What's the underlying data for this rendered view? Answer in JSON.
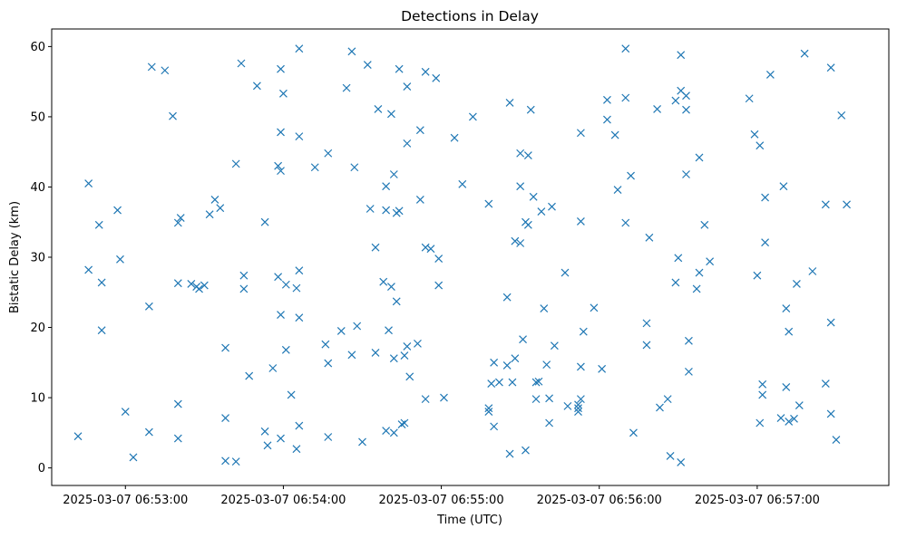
{
  "chart_data": {
    "type": "scatter",
    "title": "Detections in Delay",
    "xlabel": "Time (UTC)",
    "ylabel": "Bistatic Delay (km)",
    "x_axis": {
      "kind": "datetime",
      "range": [
        "2025-03-07 06:52:32",
        "2025-03-07 06:57:50"
      ],
      "ticks": [
        "2025-03-07 06:53:00",
        "2025-03-07 06:54:00",
        "2025-03-07 06:55:00",
        "2025-03-07 06:56:00",
        "2025-03-07 06:57:00"
      ]
    },
    "y_axis": {
      "range": [
        -2.5,
        62.5
      ],
      "ticks": [
        0,
        10,
        20,
        30,
        40,
        50,
        60
      ]
    },
    "grid": false,
    "legend": "none",
    "marker": "x",
    "color": "#1f77b4",
    "series": [
      {
        "points": [
          {
            "x": "2025-03-07 06:52:42",
            "y": 4.5
          },
          {
            "x": "2025-03-07 06:52:46",
            "y": 40.5
          },
          {
            "x": "2025-03-07 06:52:46",
            "y": 28.2
          },
          {
            "x": "2025-03-07 06:52:50",
            "y": 34.6
          },
          {
            "x": "2025-03-07 06:52:51",
            "y": 19.6
          },
          {
            "x": "2025-03-07 06:52:51",
            "y": 26.4
          },
          {
            "x": "2025-03-07 06:52:57",
            "y": 36.7
          },
          {
            "x": "2025-03-07 06:52:58",
            "y": 29.7
          },
          {
            "x": "2025-03-07 06:53:00",
            "y": 8.0
          },
          {
            "x": "2025-03-07 06:53:03",
            "y": 1.5
          },
          {
            "x": "2025-03-07 06:53:09",
            "y": 23.0
          },
          {
            "x": "2025-03-07 06:53:09",
            "y": 5.1
          },
          {
            "x": "2025-03-07 06:53:10",
            "y": 57.1
          },
          {
            "x": "2025-03-07 06:53:15",
            "y": 56.6
          },
          {
            "x": "2025-03-07 06:53:18",
            "y": 50.1
          },
          {
            "x": "2025-03-07 06:53:20",
            "y": 34.9
          },
          {
            "x": "2025-03-07 06:53:20",
            "y": 26.3
          },
          {
            "x": "2025-03-07 06:53:20",
            "y": 9.1
          },
          {
            "x": "2025-03-07 06:53:20",
            "y": 4.2
          },
          {
            "x": "2025-03-07 06:53:21",
            "y": 35.6
          },
          {
            "x": "2025-03-07 06:53:25",
            "y": 26.2
          },
          {
            "x": "2025-03-07 06:53:27",
            "y": 25.8
          },
          {
            "x": "2025-03-07 06:53:28",
            "y": 25.5
          },
          {
            "x": "2025-03-07 06:53:30",
            "y": 26.0
          },
          {
            "x": "2025-03-07 06:53:32",
            "y": 36.1
          },
          {
            "x": "2025-03-07 06:53:34",
            "y": 38.2
          },
          {
            "x": "2025-03-07 06:53:36",
            "y": 37.0
          },
          {
            "x": "2025-03-07 06:53:38",
            "y": 17.1
          },
          {
            "x": "2025-03-07 06:53:38",
            "y": 7.1
          },
          {
            "x": "2025-03-07 06:53:38",
            "y": 1.0
          },
          {
            "x": "2025-03-07 06:53:42",
            "y": 43.3
          },
          {
            "x": "2025-03-07 06:53:42",
            "y": 0.9
          },
          {
            "x": "2025-03-07 06:53:44",
            "y": 57.6
          },
          {
            "x": "2025-03-07 06:53:45",
            "y": 27.4
          },
          {
            "x": "2025-03-07 06:53:45",
            "y": 25.5
          },
          {
            "x": "2025-03-07 06:53:47",
            "y": 13.1
          },
          {
            "x": "2025-03-07 06:53:50",
            "y": 54.4
          },
          {
            "x": "2025-03-07 06:53:53",
            "y": 35.0
          },
          {
            "x": "2025-03-07 06:53:53",
            "y": 5.2
          },
          {
            "x": "2025-03-07 06:53:54",
            "y": 3.2
          },
          {
            "x": "2025-03-07 06:53:56",
            "y": 14.2
          },
          {
            "x": "2025-03-07 06:53:58",
            "y": 43.0
          },
          {
            "x": "2025-03-07 06:53:58",
            "y": 27.2
          },
          {
            "x": "2025-03-07 06:53:59",
            "y": 56.8
          },
          {
            "x": "2025-03-07 06:53:59",
            "y": 47.8
          },
          {
            "x": "2025-03-07 06:53:59",
            "y": 42.3
          },
          {
            "x": "2025-03-07 06:53:59",
            "y": 21.8
          },
          {
            "x": "2025-03-07 06:53:59",
            "y": 4.2
          },
          {
            "x": "2025-03-07 06:54:00",
            "y": 53.3
          },
          {
            "x": "2025-03-07 06:54:01",
            "y": 26.1
          },
          {
            "x": "2025-03-07 06:54:01",
            "y": 16.8
          },
          {
            "x": "2025-03-07 06:54:03",
            "y": 10.4
          },
          {
            "x": "2025-03-07 06:54:05",
            "y": 25.6
          },
          {
            "x": "2025-03-07 06:54:05",
            "y": 2.7
          },
          {
            "x": "2025-03-07 06:54:06",
            "y": 59.7
          },
          {
            "x": "2025-03-07 06:54:06",
            "y": 47.2
          },
          {
            "x": "2025-03-07 06:54:06",
            "y": 28.1
          },
          {
            "x": "2025-03-07 06:54:06",
            "y": 21.4
          },
          {
            "x": "2025-03-07 06:54:06",
            "y": 6.0
          },
          {
            "x": "2025-03-07 06:54:12",
            "y": 42.8
          },
          {
            "x": "2025-03-07 06:54:16",
            "y": 17.6
          },
          {
            "x": "2025-03-07 06:54:17",
            "y": 14.9
          },
          {
            "x": "2025-03-07 06:54:17",
            "y": 44.8
          },
          {
            "x": "2025-03-07 06:54:17",
            "y": 4.4
          },
          {
            "x": "2025-03-07 06:54:22",
            "y": 19.5
          },
          {
            "x": "2025-03-07 06:54:24",
            "y": 54.1
          },
          {
            "x": "2025-03-07 06:54:26",
            "y": 59.3
          },
          {
            "x": "2025-03-07 06:54:26",
            "y": 16.1
          },
          {
            "x": "2025-03-07 06:54:27",
            "y": 42.8
          },
          {
            "x": "2025-03-07 06:54:28",
            "y": 20.2
          },
          {
            "x": "2025-03-07 06:54:30",
            "y": 3.7
          },
          {
            "x": "2025-03-07 06:54:32",
            "y": 57.4
          },
          {
            "x": "2025-03-07 06:54:33",
            "y": 36.9
          },
          {
            "x": "2025-03-07 06:54:35",
            "y": 31.4
          },
          {
            "x": "2025-03-07 06:54:35",
            "y": 16.4
          },
          {
            "x": "2025-03-07 06:54:36",
            "y": 51.1
          },
          {
            "x": "2025-03-07 06:54:38",
            "y": 26.5
          },
          {
            "x": "2025-03-07 06:54:39",
            "y": 40.1
          },
          {
            "x": "2025-03-07 06:54:39",
            "y": 36.7
          },
          {
            "x": "2025-03-07 06:54:39",
            "y": 5.3
          },
          {
            "x": "2025-03-07 06:54:40",
            "y": 19.6
          },
          {
            "x": "2025-03-07 06:54:41",
            "y": 50.4
          },
          {
            "x": "2025-03-07 06:54:41",
            "y": 25.8
          },
          {
            "x": "2025-03-07 06:54:42",
            "y": 41.8
          },
          {
            "x": "2025-03-07 06:54:42",
            "y": 15.6
          },
          {
            "x": "2025-03-07 06:54:42",
            "y": 5.0
          },
          {
            "x": "2025-03-07 06:54:43",
            "y": 36.3
          },
          {
            "x": "2025-03-07 06:54:43",
            "y": 23.7
          },
          {
            "x": "2025-03-07 06:54:44",
            "y": 56.8
          },
          {
            "x": "2025-03-07 06:54:44",
            "y": 36.6
          },
          {
            "x": "2025-03-07 06:54:45",
            "y": 6.2
          },
          {
            "x": "2025-03-07 06:54:46",
            "y": 16.0
          },
          {
            "x": "2025-03-07 06:54:46",
            "y": 6.4
          },
          {
            "x": "2025-03-07 06:54:47",
            "y": 54.3
          },
          {
            "x": "2025-03-07 06:54:47",
            "y": 46.2
          },
          {
            "x": "2025-03-07 06:54:47",
            "y": 17.3
          },
          {
            "x": "2025-03-07 06:54:48",
            "y": 13.0
          },
          {
            "x": "2025-03-07 06:54:51",
            "y": 17.7
          },
          {
            "x": "2025-03-07 06:54:52",
            "y": 48.1
          },
          {
            "x": "2025-03-07 06:54:52",
            "y": 38.2
          },
          {
            "x": "2025-03-07 06:54:54",
            "y": 56.4
          },
          {
            "x": "2025-03-07 06:54:54",
            "y": 31.4
          },
          {
            "x": "2025-03-07 06:54:54",
            "y": 9.8
          },
          {
            "x": "2025-03-07 06:54:56",
            "y": 31.2
          },
          {
            "x": "2025-03-07 06:54:58",
            "y": 55.5
          },
          {
            "x": "2025-03-07 06:54:59",
            "y": 29.8
          },
          {
            "x": "2025-03-07 06:54:59",
            "y": 26.0
          },
          {
            "x": "2025-03-07 06:55:01",
            "y": 10.0
          },
          {
            "x": "2025-03-07 06:55:05",
            "y": 47.0
          },
          {
            "x": "2025-03-07 06:55:08",
            "y": 40.4
          },
          {
            "x": "2025-03-07 06:55:12",
            "y": 50.0
          },
          {
            "x": "2025-03-07 06:55:18",
            "y": 37.6
          },
          {
            "x": "2025-03-07 06:55:18",
            "y": 8.5
          },
          {
            "x": "2025-03-07 06:55:18",
            "y": 8.0
          },
          {
            "x": "2025-03-07 06:55:19",
            "y": 12.0
          },
          {
            "x": "2025-03-07 06:55:20",
            "y": 15.0
          },
          {
            "x": "2025-03-07 06:55:20",
            "y": 5.9
          },
          {
            "x": "2025-03-07 06:55:22",
            "y": 12.2
          },
          {
            "x": "2025-03-07 06:55:25",
            "y": 14.6
          },
          {
            "x": "2025-03-07 06:55:25",
            "y": 24.3
          },
          {
            "x": "2025-03-07 06:55:26",
            "y": 52.0
          },
          {
            "x": "2025-03-07 06:55:27",
            "y": 12.2
          },
          {
            "x": "2025-03-07 06:55:26",
            "y": 2.0
          },
          {
            "x": "2025-03-07 06:55:28",
            "y": 32.3
          },
          {
            "x": "2025-03-07 06:55:28",
            "y": 15.6
          },
          {
            "x": "2025-03-07 06:55:30",
            "y": 44.8
          },
          {
            "x": "2025-03-07 06:55:30",
            "y": 40.1
          },
          {
            "x": "2025-03-07 06:55:30",
            "y": 32.0
          },
          {
            "x": "2025-03-07 06:55:31",
            "y": 18.3
          },
          {
            "x": "2025-03-07 06:55:32",
            "y": 35.0
          },
          {
            "x": "2025-03-07 06:55:32",
            "y": 2.5
          },
          {
            "x": "2025-03-07 06:55:33",
            "y": 44.5
          },
          {
            "x": "2025-03-07 06:55:33",
            "y": 34.6
          },
          {
            "x": "2025-03-07 06:55:34",
            "y": 51.0
          },
          {
            "x": "2025-03-07 06:55:35",
            "y": 38.6
          },
          {
            "x": "2025-03-07 06:55:36",
            "y": 12.2
          },
          {
            "x": "2025-03-07 06:55:36",
            "y": 9.8
          },
          {
            "x": "2025-03-07 06:55:37",
            "y": 12.3
          },
          {
            "x": "2025-03-07 06:55:38",
            "y": 36.5
          },
          {
            "x": "2025-03-07 06:55:39",
            "y": 22.7
          },
          {
            "x": "2025-03-07 06:55:40",
            "y": 14.7
          },
          {
            "x": "2025-03-07 06:55:41",
            "y": 9.9
          },
          {
            "x": "2025-03-07 06:55:41",
            "y": 6.4
          },
          {
            "x": "2025-03-07 06:55:42",
            "y": 37.2
          },
          {
            "x": "2025-03-07 06:55:43",
            "y": 17.4
          },
          {
            "x": "2025-03-07 06:55:47",
            "y": 27.8
          },
          {
            "x": "2025-03-07 06:55:48",
            "y": 8.8
          },
          {
            "x": "2025-03-07 06:55:52",
            "y": 9.0
          },
          {
            "x": "2025-03-07 06:55:52",
            "y": 8.5
          },
          {
            "x": "2025-03-07 06:55:52",
            "y": 8.0
          },
          {
            "x": "2025-03-07 06:55:53",
            "y": 47.7
          },
          {
            "x": "2025-03-07 06:55:53",
            "y": 35.1
          },
          {
            "x": "2025-03-07 06:55:53",
            "y": 14.4
          },
          {
            "x": "2025-03-07 06:55:53",
            "y": 9.8
          },
          {
            "x": "2025-03-07 06:55:54",
            "y": 19.4
          },
          {
            "x": "2025-03-07 06:55:58",
            "y": 22.8
          },
          {
            "x": "2025-03-07 06:56:01",
            "y": 14.1
          },
          {
            "x": "2025-03-07 06:56:03",
            "y": 49.6
          },
          {
            "x": "2025-03-07 06:56:03",
            "y": 52.4
          },
          {
            "x": "2025-03-07 06:56:06",
            "y": 47.4
          },
          {
            "x": "2025-03-07 06:56:07",
            "y": 39.6
          },
          {
            "x": "2025-03-07 06:56:10",
            "y": 59.7
          },
          {
            "x": "2025-03-07 06:56:10",
            "y": 52.7
          },
          {
            "x": "2025-03-07 06:56:10",
            "y": 34.9
          },
          {
            "x": "2025-03-07 06:56:12",
            "y": 41.6
          },
          {
            "x": "2025-03-07 06:56:13",
            "y": 5.0
          },
          {
            "x": "2025-03-07 06:56:18",
            "y": 20.6
          },
          {
            "x": "2025-03-07 06:56:18",
            "y": 17.5
          },
          {
            "x": "2025-03-07 06:56:19",
            "y": 32.8
          },
          {
            "x": "2025-03-07 06:56:22",
            "y": 51.1
          },
          {
            "x": "2025-03-07 06:56:23",
            "y": 8.6
          },
          {
            "x": "2025-03-07 06:56:26",
            "y": 9.8
          },
          {
            "x": "2025-03-07 06:56:27",
            "y": 1.7
          },
          {
            "x": "2025-03-07 06:56:29",
            "y": 52.3
          },
          {
            "x": "2025-03-07 06:56:29",
            "y": 26.4
          },
          {
            "x": "2025-03-07 06:56:30",
            "y": 29.9
          },
          {
            "x": "2025-03-07 06:56:31",
            "y": 58.8
          },
          {
            "x": "2025-03-07 06:56:31",
            "y": 53.7
          },
          {
            "x": "2025-03-07 06:56:31",
            "y": 0.8
          },
          {
            "x": "2025-03-07 06:56:33",
            "y": 53.0
          },
          {
            "x": "2025-03-07 06:56:33",
            "y": 51.0
          },
          {
            "x": "2025-03-07 06:56:33",
            "y": 41.8
          },
          {
            "x": "2025-03-07 06:56:34",
            "y": 18.1
          },
          {
            "x": "2025-03-07 06:56:34",
            "y": 13.7
          },
          {
            "x": "2025-03-07 06:56:37",
            "y": 25.5
          },
          {
            "x": "2025-03-07 06:56:38",
            "y": 44.2
          },
          {
            "x": "2025-03-07 06:56:38",
            "y": 27.8
          },
          {
            "x": "2025-03-07 06:56:40",
            "y": 34.6
          },
          {
            "x": "2025-03-07 06:56:42",
            "y": 29.4
          },
          {
            "x": "2025-03-07 06:56:57",
            "y": 52.6
          },
          {
            "x": "2025-03-07 06:56:59",
            "y": 47.5
          },
          {
            "x": "2025-03-07 06:57:00",
            "y": 27.4
          },
          {
            "x": "2025-03-07 06:57:01",
            "y": 45.9
          },
          {
            "x": "2025-03-07 06:57:01",
            "y": 6.4
          },
          {
            "x": "2025-03-07 06:57:02",
            "y": 11.9
          },
          {
            "x": "2025-03-07 06:57:02",
            "y": 10.4
          },
          {
            "x": "2025-03-07 06:57:03",
            "y": 38.5
          },
          {
            "x": "2025-03-07 06:57:03",
            "y": 32.1
          },
          {
            "x": "2025-03-07 06:57:05",
            "y": 56.0
          },
          {
            "x": "2025-03-07 06:57:09",
            "y": 7.1
          },
          {
            "x": "2025-03-07 06:57:10",
            "y": 40.1
          },
          {
            "x": "2025-03-07 06:57:11",
            "y": 22.7
          },
          {
            "x": "2025-03-07 06:57:11",
            "y": 11.5
          },
          {
            "x": "2025-03-07 06:57:12",
            "y": 6.6
          },
          {
            "x": "2025-03-07 06:57:12",
            "y": 19.4
          },
          {
            "x": "2025-03-07 06:57:14",
            "y": 7.0
          },
          {
            "x": "2025-03-07 06:57:15",
            "y": 26.2
          },
          {
            "x": "2025-03-07 06:57:16",
            "y": 8.9
          },
          {
            "x": "2025-03-07 06:57:18",
            "y": 59.0
          },
          {
            "x": "2025-03-07 06:57:21",
            "y": 28.0
          },
          {
            "x": "2025-03-07 06:57:26",
            "y": 12.0
          },
          {
            "x": "2025-03-07 06:57:26",
            "y": 37.5
          },
          {
            "x": "2025-03-07 06:57:28",
            "y": 57.0
          },
          {
            "x": "2025-03-07 06:57:28",
            "y": 20.7
          },
          {
            "x": "2025-03-07 06:57:28",
            "y": 7.7
          },
          {
            "x": "2025-03-07 06:57:30",
            "y": 4.0
          },
          {
            "x": "2025-03-07 06:57:32",
            "y": 50.2
          },
          {
            "x": "2025-03-07 06:57:34",
            "y": 37.5
          }
        ]
      }
    ]
  }
}
